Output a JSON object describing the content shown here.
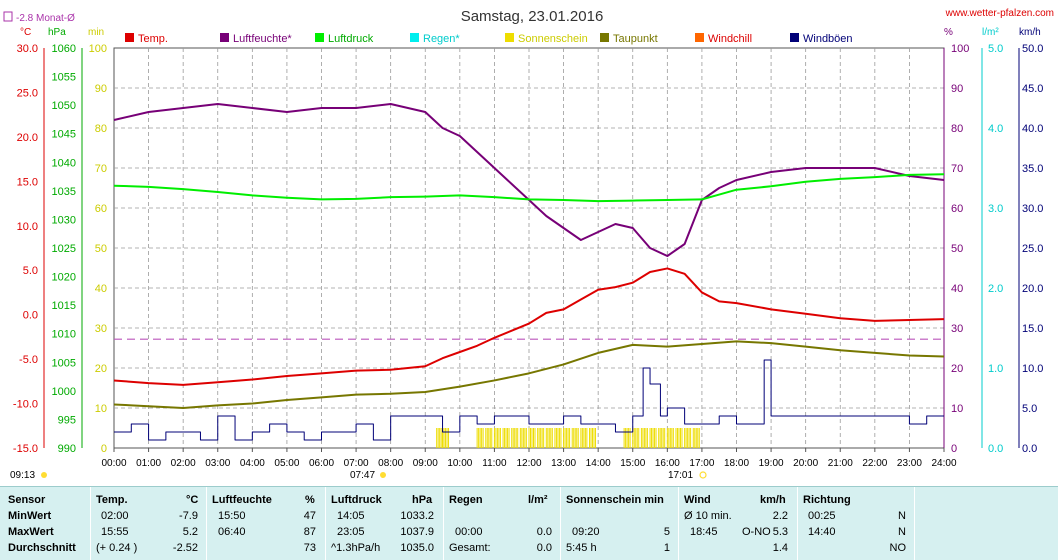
{
  "title": "Samstag, 23.01.2016",
  "website": "www.wetter-pfalzen.com",
  "monthly_avg_label": "-2.8 Monat-Ø",
  "colors": {
    "temp": "#dd0000",
    "humidity": "#770077",
    "pressure": "#00ee00",
    "rain": "#00dddd",
    "sun": "#eedd00",
    "dewpoint": "#777700",
    "windchill": "#ff6600",
    "gusts": "#000077",
    "wind_axis": "#000077",
    "grid": "#999999"
  },
  "units": {
    "temp": "°C",
    "pressure": "hPa",
    "sun": "min",
    "humidity": "%",
    "rain": "l/m²",
    "wind": "km/h"
  },
  "axes": {
    "temp_ticks": [
      "30.0",
      "25.0",
      "20.0",
      "15.0",
      "10.0",
      "5.0",
      "0.0",
      "-5.0",
      "-10.0",
      "-15.0"
    ],
    "pressure_ticks": [
      "1060",
      "1055",
      "1050",
      "1045",
      "1040",
      "1035",
      "1030",
      "1025",
      "1020",
      "1015",
      "1010",
      "1005",
      "1000",
      "995",
      "990"
    ],
    "sun_ticks": [
      "100",
      "90",
      "80",
      "70",
      "60",
      "50",
      "40",
      "30",
      "20",
      "10",
      "0"
    ],
    "humidity_ticks": [
      "100",
      "90",
      "80",
      "70",
      "60",
      "50",
      "40",
      "30",
      "20",
      "10",
      "0"
    ],
    "rain_ticks": [
      "5.0",
      "4.0",
      "3.0",
      "2.0",
      "1.0",
      "0.0"
    ],
    "wind_ticks": [
      "50.0",
      "45.0",
      "40.0",
      "35.0",
      "30.0",
      "25.0",
      "20.0",
      "15.0",
      "10.0",
      "5.0",
      "0.0"
    ],
    "time_ticks": [
      "00:00",
      "01:00",
      "02:00",
      "03:00",
      "04:00",
      "05:00",
      "06:00",
      "07:00",
      "08:00",
      "09:00",
      "10:00",
      "11:00",
      "12:00",
      "13:00",
      "14:00",
      "15:00",
      "16:00",
      "17:00",
      "18:00",
      "19:00",
      "20:00",
      "21:00",
      "22:00",
      "23:00",
      "24:00"
    ],
    "moonrise": "09:13",
    "sunrise": "07:47",
    "sunset": "17:01"
  },
  "chart_data": {
    "type": "line",
    "title": "Samstag, 23.01.2016",
    "x_unit": "hour of day",
    "x_range": [
      0,
      24
    ],
    "legend": [
      "Temp.",
      "Luftfeuchte*",
      "Luftdruck",
      "Regen*",
      "Sonnenschein",
      "Taupunkt",
      "Windchill",
      "Windböen"
    ],
    "series": [
      {
        "name": "Temp.",
        "unit": "°C",
        "axis": "temp",
        "x": [
          0,
          1,
          2,
          3,
          4,
          5,
          6,
          7,
          8,
          9,
          9.5,
          10,
          10.5,
          11,
          11.5,
          12,
          12.5,
          13,
          13.5,
          14,
          14.5,
          15,
          15.5,
          16,
          16.5,
          17,
          17.5,
          18,
          19,
          20,
          21,
          22,
          23,
          24
        ],
        "y": [
          -7.4,
          -7.7,
          -7.9,
          -7.6,
          -7.3,
          -6.9,
          -6.6,
          -6.3,
          -6.2,
          -5.8,
          -4.9,
          -4.2,
          -3.5,
          -2.6,
          -1.8,
          -1.0,
          0.2,
          0.6,
          1.7,
          2.8,
          3.1,
          3.6,
          4.8,
          5.2,
          4.6,
          2.5,
          1.5,
          1.3,
          0.6,
          0.1,
          -0.4,
          -0.7,
          -0.6,
          -0.5
        ]
      },
      {
        "name": "Luftfeuchte*",
        "unit": "%",
        "axis": "humidity",
        "x": [
          0,
          1,
          2,
          3,
          4,
          5,
          6,
          7,
          8,
          9,
          9.5,
          10,
          10.5,
          11,
          11.5,
          12,
          12.5,
          13,
          13.5,
          14,
          14.5,
          15,
          15.5,
          16,
          16.5,
          17,
          17.5,
          18,
          19,
          20,
          21,
          22,
          23,
          24
        ],
        "y": [
          82,
          84,
          85,
          86,
          85,
          84,
          85,
          85,
          86,
          84,
          80,
          78,
          74,
          70,
          66,
          62,
          58,
          55,
          52,
          54,
          56,
          55,
          50,
          48,
          51,
          62,
          65,
          67,
          69,
          70,
          70,
          70,
          68,
          67
        ]
      },
      {
        "name": "Luftdruck",
        "unit": "hPa",
        "axis": "pressure",
        "x": [
          0,
          1,
          2,
          3,
          4,
          5,
          6,
          7,
          8,
          9,
          10,
          11,
          12,
          13,
          14,
          15,
          16,
          17,
          18,
          19,
          20,
          21,
          22,
          23,
          24
        ],
        "y": [
          1035.9,
          1035.7,
          1035.3,
          1034.8,
          1034.2,
          1033.8,
          1033.5,
          1033.6,
          1033.9,
          1034.0,
          1034.2,
          1033.9,
          1033.5,
          1033.4,
          1033.2,
          1033.3,
          1033.4,
          1033.5,
          1035.2,
          1035.8,
          1036.6,
          1037.1,
          1037.4,
          1037.8,
          1037.9
        ]
      },
      {
        "name": "Taupunkt",
        "unit": "°C",
        "axis": "temp",
        "x": [
          0,
          1,
          2,
          3,
          4,
          5,
          6,
          7,
          8,
          9,
          10,
          11,
          12,
          13,
          14,
          15,
          16,
          17,
          18,
          19,
          20,
          21,
          22,
          23,
          24
        ],
        "y": [
          -10.1,
          -10.3,
          -10.5,
          -10.2,
          -10.0,
          -9.6,
          -9.3,
          -9.0,
          -8.9,
          -8.7,
          -8.1,
          -7.4,
          -6.6,
          -5.6,
          -4.3,
          -3.4,
          -3.6,
          -3.3,
          -3.0,
          -3.2,
          -3.6,
          -4.0,
          -4.3,
          -4.6,
          -4.7
        ]
      },
      {
        "name": "Windböen",
        "unit": "km/h",
        "axis": "wind",
        "x": [
          0,
          0.5,
          1,
          1.5,
          2,
          2.5,
          3,
          3.5,
          4,
          4.5,
          5,
          5.5,
          6,
          6.5,
          7,
          7.5,
          8,
          8.5,
          9,
          9.5,
          10,
          10.5,
          11,
          11.5,
          12,
          12.5,
          13,
          13.5,
          14,
          14.5,
          15,
          15.3,
          15.5,
          15.8,
          16,
          16.5,
          17,
          17.5,
          18,
          18.5,
          18.8,
          19,
          19.5,
          20,
          20.5,
          21,
          21.5,
          22,
          22.5,
          23,
          23.5,
          24
        ],
        "y": [
          2,
          3,
          1,
          2,
          2,
          1,
          4,
          1,
          2,
          3,
          2,
          1,
          2,
          2,
          3,
          1,
          4,
          4,
          4,
          2,
          4,
          3,
          4,
          4,
          3,
          3,
          4,
          3,
          3,
          2,
          4,
          10,
          8,
          4,
          5,
          3,
          3,
          4,
          3,
          3,
          11,
          4,
          4,
          4,
          4,
          4,
          4,
          4,
          4,
          3,
          4,
          4
        ]
      },
      {
        "name": "Sonnenschein",
        "unit": "min",
        "axis": "sun",
        "x": [
          9.33,
          9.5,
          9.75,
          10,
          10.25,
          10.5,
          10.75,
          11,
          11.25,
          11.5,
          11.75,
          12,
          12.25,
          12.5,
          12.75,
          13,
          13.25,
          13.5,
          13.75,
          14,
          14.25,
          14.5,
          14.75,
          15,
          15.25,
          15.5,
          15.75,
          16,
          16.25,
          16.5,
          16.75
        ],
        "y": [
          5,
          5,
          0,
          0,
          0,
          5,
          5,
          5,
          5,
          5,
          5,
          5,
          5,
          5,
          5,
          5,
          5,
          5,
          5,
          0,
          0,
          0,
          5,
          5,
          5,
          5,
          5,
          5,
          5,
          5,
          5
        ]
      }
    ]
  },
  "stats": {
    "headers": {
      "sensor": "Sensor",
      "temp": "Temp.",
      "temp_unit": "°C",
      "hum": "Luftfeuchte",
      "hum_unit": "%",
      "press": "Luftdruck",
      "press_unit": "hPa",
      "rain": "Regen",
      "rain_unit": "l/m²",
      "sun": "Sonnenschein min",
      "wind": "Wind",
      "wind_unit": "km/h",
      "dir": "Richtung"
    },
    "rows": [
      {
        "label": "MinWert",
        "temp_time": "02:00",
        "temp_val": "-7.9",
        "hum_time": "15:50",
        "hum_val": "47",
        "press_time": "14:05",
        "press_val": "1033.2",
        "rain_time": "",
        "rain_val": "",
        "sun_time": "",
        "sun_val": "",
        "wind_time": "Ø 10 min.",
        "wind_dir": "",
        "wind_val": "2.2",
        "dir_time": "00:25",
        "dir_val": "N"
      },
      {
        "label": "MaxWert",
        "temp_time": "15:55",
        "temp_val": "5.2",
        "hum_time": "06:40",
        "hum_val": "87",
        "press_time": "23:05",
        "press_val": "1037.9",
        "rain_time": "00:00",
        "rain_val": "0.0",
        "sun_time": "09:20",
        "sun_val": "5",
        "wind_time": "18:45",
        "wind_dir": "O-NO",
        "wind_val": "5.3",
        "dir_time": "14:40",
        "dir_val": "N"
      },
      {
        "label": "Durchschnitt",
        "temp_time": "(+ 0.24 )",
        "temp_val": "-2.52",
        "hum_time": "",
        "hum_val": "73",
        "press_time": "^1.3hPa/h",
        "press_val": "1035.0",
        "rain_time": "Gesamt:",
        "rain_val": "0.0",
        "sun_time": "5:45 h",
        "sun_val": "1",
        "wind_time": "",
        "wind_dir": "",
        "wind_val": "1.4",
        "dir_time": "",
        "dir_val": "NO"
      }
    ]
  }
}
